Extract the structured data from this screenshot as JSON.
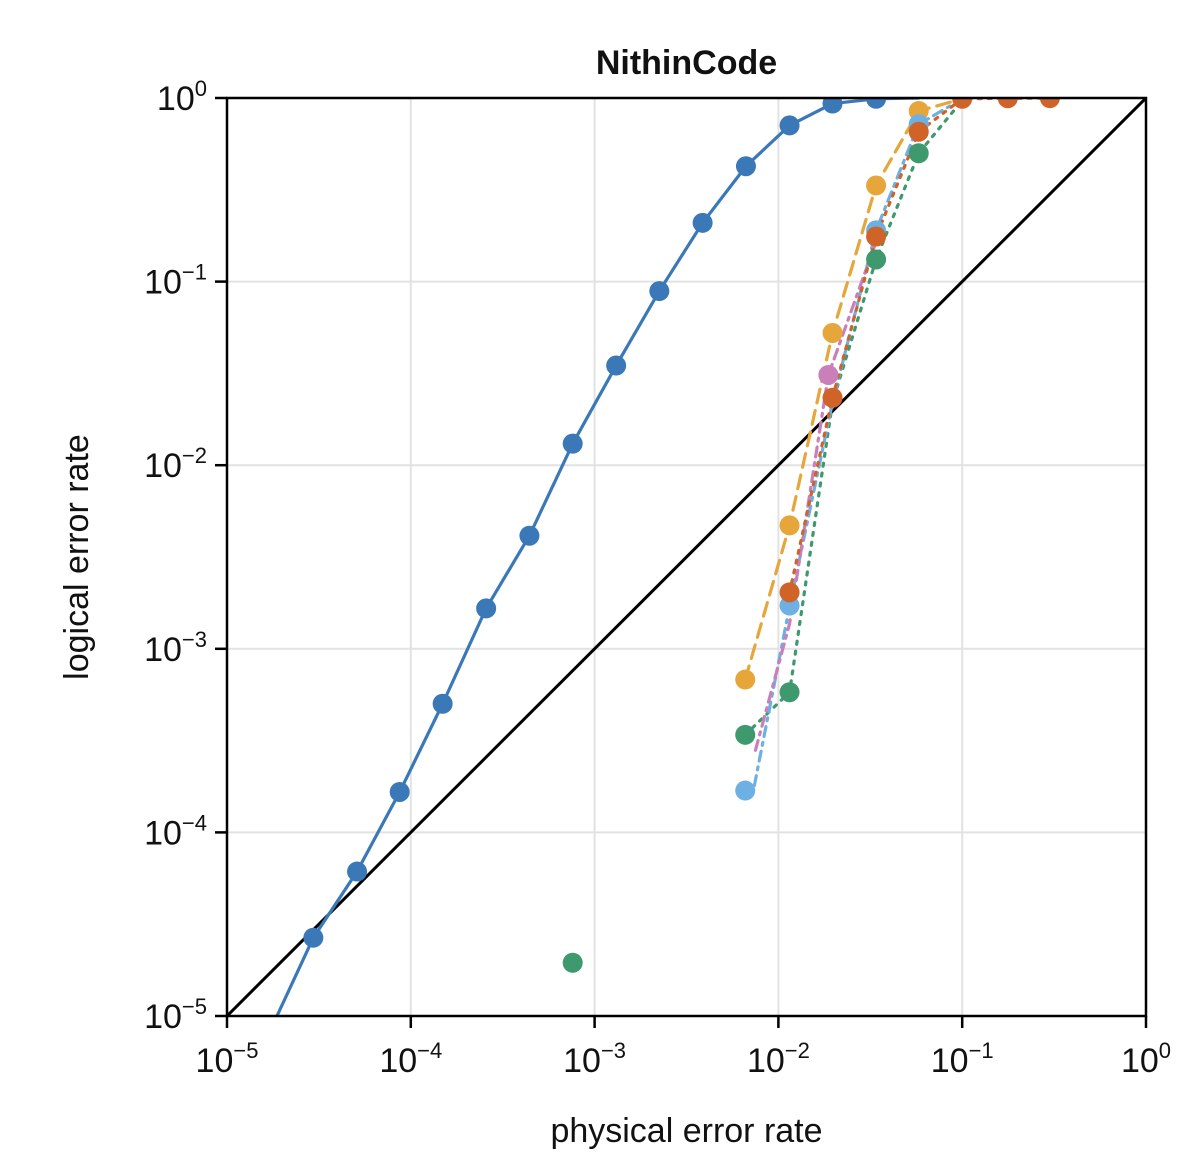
{
  "chart_data": {
    "type": "scatter",
    "title": "NithinCode",
    "xlabel": "physical error rate",
    "ylabel": "logical error rate",
    "xscale": "log",
    "yscale": "log",
    "xlim": [
      1e-05,
      1
    ],
    "ylim": [
      1e-05,
      1
    ],
    "grid": true,
    "x_ticks": [
      {
        "base": "10",
        "exp": "−5",
        "value": 1e-05
      },
      {
        "base": "10",
        "exp": "−4",
        "value": 0.0001
      },
      {
        "base": "10",
        "exp": "−3",
        "value": 0.001
      },
      {
        "base": "10",
        "exp": "−2",
        "value": 0.01
      },
      {
        "base": "10",
        "exp": "−1",
        "value": 0.1
      },
      {
        "base": "10",
        "exp": "0",
        "value": 1
      }
    ],
    "y_ticks": [
      {
        "base": "10",
        "exp": "−5",
        "value": 1e-05
      },
      {
        "base": "10",
        "exp": "−4",
        "value": 0.0001
      },
      {
        "base": "10",
        "exp": "−3",
        "value": 0.001
      },
      {
        "base": "10",
        "exp": "−2",
        "value": 0.01
      },
      {
        "base": "10",
        "exp": "−1",
        "value": 0.1
      },
      {
        "base": "10",
        "exp": "0",
        "value": 1
      }
    ],
    "reference_line": {
      "x": [
        1e-05,
        1
      ],
      "y": [
        1e-05,
        1
      ],
      "color": "#000000"
    },
    "series": [
      {
        "color": "#3a78b7",
        "dash": "solid",
        "line": {
          "x": [
            1.87e-05,
            2.95e-05,
            5.1e-05,
            8.7e-05,
            0.000149,
            0.000257,
            0.000442,
            0.00076,
            0.00131,
            0.00225,
            0.00387,
            0.00666,
            0.0115,
            0.0197,
            0.034,
            0.058
          ],
          "y": [
            1e-05,
            2.67e-05,
            6.12e-05,
            0.000166,
            0.000502,
            0.00166,
            0.00413,
            0.0131,
            0.0349,
            0.0888,
            0.209,
            0.425,
            0.709,
            0.933,
            0.99,
            1.0
          ]
        },
        "points": {
          "x": [
            2.95e-05,
            5.1e-05,
            8.7e-05,
            0.000149,
            0.000257,
            0.000442,
            0.00076,
            0.00131,
            0.00225,
            0.00387,
            0.00666,
            0.0115,
            0.0197,
            0.034
          ],
          "y": [
            2.67e-05,
            6.12e-05,
            0.000166,
            0.000502,
            0.00166,
            0.00413,
            0.0131,
            0.0349,
            0.0888,
            0.209,
            0.425,
            0.709,
            0.933,
            0.99
          ]
        }
      },
      {
        "color": "#e6a63a",
        "dash": "dashed",
        "line": {
          "x": [
            0.0066,
            0.0115,
            0.0197,
            0.034,
            0.058,
            0.1
          ],
          "y": [
            0.00068,
            0.0047,
            0.0525,
            0.334,
            0.85,
            0.99
          ]
        },
        "points": {
          "x": [
            0.0066,
            0.0115,
            0.0197,
            0.034,
            0.058
          ],
          "y": [
            0.00068,
            0.0047,
            0.0525,
            0.334,
            0.85
          ]
        }
      },
      {
        "color": "#3e9a6e",
        "dash": "dotted",
        "line": {
          "x": [
            0.0066,
            0.0115,
            0.0197,
            0.034,
            0.058,
            0.1
          ],
          "y": [
            0.00034,
            0.00058,
            0.022,
            0.132,
            0.5,
            0.97
          ]
        },
        "points": {
          "x": [
            0.00076,
            0.0066,
            0.0115,
            0.034,
            0.058
          ],
          "y": [
            1.95e-05,
            0.00034,
            0.00058,
            0.132,
            0.5
          ]
        }
      },
      {
        "color": "#6cb0e4",
        "dash": "dashdot",
        "line": {
          "x": [
            0.0074,
            0.0115,
            0.0197,
            0.034,
            0.058,
            0.1
          ],
          "y": [
            0.00018,
            0.0017,
            0.022,
            0.19,
            0.72,
            0.99
          ]
        },
        "points": {
          "x": [
            0.0066,
            0.0115,
            0.034,
            0.058
          ],
          "y": [
            0.000169,
            0.00172,
            0.19,
            0.72
          ]
        }
      },
      {
        "color": "#c97fba",
        "dash": "dashdot",
        "line": {
          "x": [
            0.0075,
            0.0115,
            0.0187,
            0.034
          ],
          "y": [
            0.00028,
            0.00137,
            0.031,
            0.165
          ]
        },
        "points": {
          "x": [
            0.0187
          ],
          "y": [
            0.031
          ]
        }
      },
      {
        "color": "#cf6328",
        "dash": "dotted",
        "line": {
          "x": [
            0.0115,
            0.0197,
            0.034,
            0.058,
            0.1,
            0.177,
            0.3
          ],
          "y": [
            0.00203,
            0.0233,
            0.176,
            0.655,
            0.99,
            0.997,
            0.998
          ]
        },
        "points": {
          "x": [
            0.0115,
            0.0197,
            0.034,
            0.058,
            0.1,
            0.177,
            0.3
          ],
          "y": [
            0.00203,
            0.0233,
            0.176,
            0.655,
            0.99,
            0.997,
            0.998
          ]
        }
      }
    ]
  }
}
